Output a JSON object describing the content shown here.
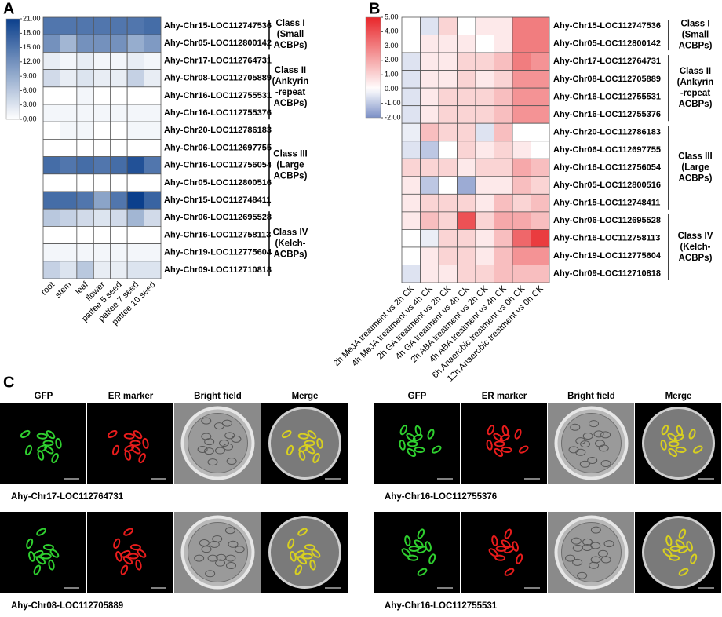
{
  "panel_labels": [
    "A",
    "B",
    "C"
  ],
  "chart_data": [
    {
      "type": "heatmap",
      "x_labels": [
        "root",
        "stem",
        "leaf",
        "flower",
        "pattee 5 seed",
        "pattee 7 seed",
        "pattee 10 seed"
      ],
      "colorbar": {
        "range": [
          0,
          21
        ],
        "colors": [
          "#ffffff",
          "#0b3f8c"
        ],
        "ticks": [
          {
            "value": 0,
            "label": "0.00"
          },
          {
            "value": 3,
            "label": "3.00"
          },
          {
            "value": 6,
            "label": "6.00"
          },
          {
            "value": 9,
            "label": "9.00"
          },
          {
            "value": 12,
            "label": "12.00"
          },
          {
            "value": 15,
            "label": "15.00"
          },
          {
            "value": 18,
            "label": "18.00"
          },
          {
            "value": 21,
            "label": "21.00"
          }
        ]
      },
      "groups": [
        {
          "label": [
            "Class I",
            "(Small",
            "ACBPs)"
          ],
          "rows": [
            {
              "name": "Ahy-Chr15-LOC112747536",
              "values": [
                15,
                15,
                15,
                15,
                15,
                15,
                16
              ]
            },
            {
              "name": "Ahy-Chr05-LOC112800142",
              "values": [
                12,
                8,
                12,
                12,
                12,
                9,
                11
              ]
            }
          ]
        },
        {
          "label": [
            "Class II",
            "(Ankyrin",
            "-repeat",
            "ACBPs)"
          ],
          "rows": [
            {
              "name": "Ahy-Chr17-LOC112764731",
              "values": [
                2,
                1,
                2,
                1,
                1,
                2,
                1
              ]
            },
            {
              "name": "Ahy-Chr08-LOC112705889",
              "values": [
                4,
                2,
                3,
                2,
                2,
                5,
                2
              ]
            },
            {
              "name": "Ahy-Chr16-LOC112755531",
              "values": [
                0,
                0,
                1,
                0,
                0,
                0,
                0
              ]
            },
            {
              "name": "Ahy-Chr16-LOC112755376",
              "values": [
                1,
                1,
                1,
                1,
                1,
                1,
                1
              ]
            }
          ]
        },
        {
          "label": [
            "Class III",
            "(Large",
            "ACBPs)"
          ],
          "rows": [
            {
              "name": "Ahy-Chr20-LOC112786183",
              "values": [
                0,
                1,
                1,
                0,
                0,
                1,
                1
              ]
            },
            {
              "name": "Ahy-Chr06-LOC112697755",
              "values": [
                0,
                0,
                0,
                0,
                0,
                0,
                0
              ]
            },
            {
              "name": "Ahy-Chr16-LOC112756054",
              "values": [
                16,
                15,
                16,
                15,
                16,
                19,
                15
              ]
            },
            {
              "name": "Ahy-Chr05-LOC112800516",
              "values": [
                0,
                0,
                0,
                0,
                0,
                0,
                0
              ]
            },
            {
              "name": "Ahy-Chr15-LOC112748411",
              "values": [
                16,
                16,
                15,
                10,
                15,
                21,
                17
              ]
            }
          ]
        },
        {
          "label": [
            "Class IV",
            "(Kelch-",
            "ACBPs)"
          ],
          "rows": [
            {
              "name": "Ahy-Chr06-LOC112695528",
              "values": [
                6,
                5,
                4,
                3,
                4,
                8,
                4
              ]
            },
            {
              "name": "Ahy-Chr16-LOC112758113",
              "values": [
                0,
                0,
                0,
                0,
                0,
                0,
                0
              ]
            },
            {
              "name": "Ahy-Chr19-LOC112775604",
              "values": [
                1,
                1,
                1,
                1,
                1,
                1,
                1
              ]
            },
            {
              "name": "Ahy-Chr09-LOC112710818",
              "values": [
                5,
                3,
                6,
                2,
                2,
                3,
                3
              ]
            }
          ]
        }
      ]
    },
    {
      "type": "heatmap",
      "x_labels": [
        "2h MeJA treatment vs 2h CK",
        "4h MeJA treatment vs 4h CK",
        "2h GA treatment vs 2h CK",
        "4h GA treatment vs 4h CK",
        "2h ABA treatment vs 2h CK",
        "4h ABA treatment vs 4h CK",
        "6h Anaerobic treatment vs 0h CK",
        "12h Anaerobic treatment vs 0h CK"
      ],
      "colorbar": {
        "range": [
          -2,
          5
        ],
        "colors": [
          "#7b8fc6",
          "#ffffff",
          "#e8262a"
        ],
        "ticks": [
          {
            "value": 5,
            "label": "5.00"
          },
          {
            "value": 4,
            "label": "4.00"
          },
          {
            "value": 3,
            "label": "3.00"
          },
          {
            "value": 2,
            "label": "2.00"
          },
          {
            "value": 1,
            "label": "1.00"
          },
          {
            "value": 0,
            "label": "0.00"
          },
          {
            "value": -1,
            "label": "-1.00"
          },
          {
            "value": -2,
            "label": "-2.00"
          }
        ]
      },
      "groups": [
        {
          "label": [
            "Class I",
            "(Small",
            "ACBPs)"
          ],
          "rows": [
            {
              "name": "Ahy-Chr15-LOC112747536",
              "values": [
                0,
                -0.5,
                1,
                0,
                0.5,
                0.5,
                3,
                3
              ]
            },
            {
              "name": "Ahy-Chr05-LOC112800142",
              "values": [
                0,
                0.5,
                0.5,
                0.5,
                0,
                0.5,
                3,
                3
              ]
            }
          ]
        },
        {
          "label": [
            "Class II",
            "(Ankyrin",
            "-repeat",
            "ACBPs)"
          ],
          "rows": [
            {
              "name": "Ahy-Chr17-LOC112764731",
              "values": [
                -0.5,
                0.5,
                0.5,
                1,
                1,
                1.5,
                3,
                2.5
              ]
            },
            {
              "name": "Ahy-Chr08-LOC112705889",
              "values": [
                -0.5,
                0.5,
                0.5,
                1,
                0.5,
                1,
                2.5,
                2.5
              ]
            },
            {
              "name": "Ahy-Chr16-LOC112755531",
              "values": [
                -0.5,
                0.5,
                1,
                1,
                1,
                1.5,
                2.5,
                2.5
              ]
            },
            {
              "name": "Ahy-Chr16-LOC112755376",
              "values": [
                -0.5,
                0.5,
                1,
                1,
                1,
                1.5,
                2.5,
                2.5
              ]
            }
          ]
        },
        {
          "label": [
            "Class III",
            "(Large",
            "ACBPs)"
          ],
          "rows": [
            {
              "name": "Ahy-Chr20-LOC112786183",
              "values": [
                -0.3,
                1.5,
                1,
                1,
                -0.5,
                1.5,
                0,
                0
              ]
            },
            {
              "name": "Ahy-Chr06-LOC112697755",
              "values": [
                -0.5,
                -1,
                0,
                1,
                0.5,
                1,
                0.5,
                0
              ]
            },
            {
              "name": "Ahy-Chr16-LOC112756054",
              "values": [
                1,
                1,
                1,
                0.5,
                1,
                1,
                2,
                1.5
              ]
            },
            {
              "name": "Ahy-Chr05-LOC112800516",
              "values": [
                0.5,
                -1,
                0,
                -1.5,
                0.5,
                0.5,
                1.5,
                1
              ]
            },
            {
              "name": "Ahy-Chr15-LOC112748411",
              "values": [
                0.5,
                1,
                1,
                1,
                0.5,
                1.5,
                1,
                1.5
              ]
            }
          ]
        },
        {
          "label": [
            "Class IV",
            "(Kelch-",
            "ACBPs)"
          ],
          "rows": [
            {
              "name": "Ahy-Chr06-LOC112695528",
              "values": [
                0.5,
                1.5,
                1,
                4,
                1,
                2,
                2,
                1.5
              ]
            },
            {
              "name": "Ahy-Chr16-LOC112758113",
              "values": [
                0,
                -0.3,
                1,
                1,
                0.5,
                1.5,
                3.5,
                4.5
              ]
            },
            {
              "name": "Ahy-Chr19-LOC112775604",
              "values": [
                0,
                0.5,
                1,
                1,
                0.5,
                1.5,
                2.5,
                2.5
              ]
            },
            {
              "name": "Ahy-Chr09-LOC112710818",
              "values": [
                -0.5,
                0.5,
                0.5,
                1,
                1,
                1.5,
                1.5,
                1.5
              ]
            }
          ]
        }
      ]
    }
  ],
  "microscopy": [
    {
      "columns": [
        "GFP",
        "ER marker",
        "Bright field",
        "Merge"
      ],
      "samples": [
        "Ahy-Chr17-LOC112764731",
        "Ahy-Chr08-LOC112705889"
      ]
    },
    {
      "columns": [
        "GFP",
        "ER marker",
        "Bright field",
        "Merge"
      ],
      "samples": [
        "Ahy-Chr16-LOC112755376",
        "Ahy-Chr16-LOC112755531"
      ]
    }
  ]
}
